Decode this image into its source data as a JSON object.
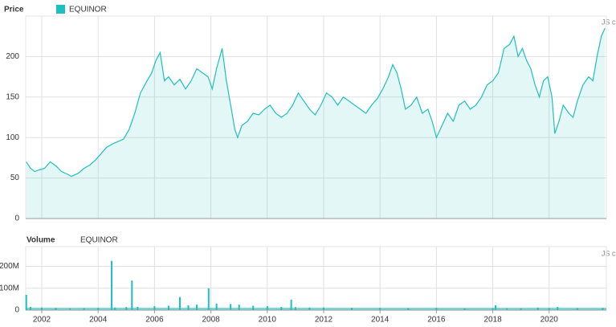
{
  "credit": "JS c",
  "chart_data": [
    {
      "type": "area",
      "title": "Price",
      "x": [
        2001.45,
        2001.6,
        2001.75,
        2001.9,
        2002.1,
        2002.3,
        2002.5,
        2002.7,
        2002.9,
        2003.05,
        2003.3,
        2003.5,
        2003.7,
        2003.9,
        2004.1,
        2004.3,
        2004.5,
        2004.7,
        2004.9,
        2005.1,
        2005.3,
        2005.5,
        2005.7,
        2005.9,
        2006.05,
        2006.2,
        2006.35,
        2006.5,
        2006.7,
        2006.9,
        2007.1,
        2007.3,
        2007.5,
        2007.7,
        2007.9,
        2008.05,
        2008.2,
        2008.4,
        2008.55,
        2008.7,
        2008.85,
        2008.95,
        2009.1,
        2009.3,
        2009.5,
        2009.7,
        2009.9,
        2010.1,
        2010.3,
        2010.5,
        2010.7,
        2010.9,
        2011.1,
        2011.3,
        2011.5,
        2011.7,
        2011.9,
        2012.1,
        2012.3,
        2012.5,
        2012.7,
        2012.9,
        2013.1,
        2013.3,
        2013.5,
        2013.7,
        2013.9,
        2014.1,
        2014.3,
        2014.45,
        2014.6,
        2014.75,
        2014.9,
        2015.1,
        2015.3,
        2015.5,
        2015.7,
        2015.85,
        2016.0,
        2016.2,
        2016.4,
        2016.6,
        2016.8,
        2017.0,
        2017.2,
        2017.4,
        2017.6,
        2017.8,
        2018.0,
        2018.2,
        2018.4,
        2018.6,
        2018.75,
        2018.9,
        2019.05,
        2019.2,
        2019.35,
        2019.5,
        2019.65,
        2019.8,
        2019.95,
        2020.1,
        2020.2,
        2020.35,
        2020.5,
        2020.7,
        2020.85,
        2021.0,
        2021.2,
        2021.4,
        2021.55,
        2021.7,
        2021.85,
        2021.98
      ],
      "series": [
        {
          "name": "EQUINOR",
          "color": "#1fbfbf",
          "values": [
            70,
            62,
            58,
            60,
            62,
            70,
            65,
            58,
            55,
            52,
            56,
            62,
            66,
            72,
            80,
            88,
            92,
            95,
            98,
            110,
            130,
            155,
            168,
            180,
            195,
            205,
            170,
            175,
            165,
            172,
            160,
            170,
            185,
            180,
            175,
            160,
            185,
            210,
            170,
            140,
            110,
            100,
            115,
            120,
            130,
            128,
            135,
            140,
            130,
            125,
            130,
            140,
            155,
            145,
            135,
            128,
            140,
            155,
            150,
            140,
            150,
            145,
            140,
            135,
            130,
            140,
            148,
            160,
            175,
            190,
            180,
            160,
            135,
            140,
            150,
            130,
            135,
            120,
            100,
            115,
            130,
            120,
            140,
            145,
            135,
            140,
            150,
            165,
            170,
            180,
            210,
            215,
            225,
            200,
            210,
            195,
            185,
            165,
            150,
            170,
            175,
            150,
            105,
            120,
            140,
            130,
            125,
            145,
            165,
            175,
            170,
            200,
            225,
            235
          ]
        }
      ],
      "xlim": [
        2001.43,
        2022.03
      ],
      "ylim": [
        0,
        250
      ],
      "yticks": [
        0,
        50,
        100,
        150,
        200
      ],
      "grid": true
    },
    {
      "type": "bar",
      "title": "Volume",
      "x": [
        2001.45,
        2001.6,
        2002,
        2002.5,
        2003,
        2003.5,
        2004,
        2004.48,
        2004.6,
        2005,
        2005.2,
        2005.4,
        2006,
        2006.5,
        2006.9,
        2007.2,
        2007.5,
        2007.92,
        2008.2,
        2008.7,
        2009,
        2009.5,
        2010,
        2010.5,
        2010.85,
        2011,
        2011.5,
        2012,
        2013,
        2014,
        2015,
        2016,
        2017,
        2018,
        2018.1,
        2018.5,
        2019,
        2019.6,
        2020,
        2020.3,
        2021,
        2021.9
      ],
      "series": [
        {
          "name": "EQUINOR",
          "color": "#1fbfbf",
          "values": [
            70000000,
            15000000,
            12000000,
            10000000,
            8000000,
            9000000,
            10000000,
            225000000,
            12000000,
            14000000,
            135000000,
            15000000,
            18000000,
            20000000,
            60000000,
            22000000,
            25000000,
            100000000,
            30000000,
            28000000,
            25000000,
            20000000,
            18000000,
            15000000,
            48000000,
            14000000,
            12000000,
            12000000,
            10000000,
            10000000,
            9000000,
            10000000,
            8000000,
            8000000,
            22000000,
            8000000,
            8000000,
            12000000,
            10000000,
            15000000,
            9000000,
            10000000
          ]
        }
      ],
      "xlim": [
        2001.43,
        2022.03
      ],
      "ylim": [
        0,
        290000000
      ],
      "yticks": [
        0,
        {
          "value": 100000000,
          "label": "100M"
        },
        {
          "value": 200000000,
          "label": "200M"
        }
      ],
      "xticks": [
        2002,
        2004,
        2006,
        2008,
        2010,
        2012,
        2014,
        2016,
        2018,
        2020
      ],
      "grid": true
    }
  ]
}
